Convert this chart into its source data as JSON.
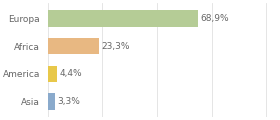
{
  "categories": [
    "Europa",
    "Africa",
    "America",
    "Asia"
  ],
  "values": [
    68.9,
    23.3,
    4.4,
    3.3
  ],
  "labels": [
    "68,9%",
    "23,3%",
    "4,4%",
    "3,3%"
  ],
  "bar_colors": [
    "#b5cc96",
    "#e8b882",
    "#e8c84a",
    "#8aaacc"
  ],
  "background_color": "#ffffff",
  "grid_color": "#e0e0e0",
  "text_color": "#666666",
  "xlim": [
    0,
    105
  ],
  "label_fontsize": 6.5,
  "category_fontsize": 6.5,
  "bar_height": 0.6
}
